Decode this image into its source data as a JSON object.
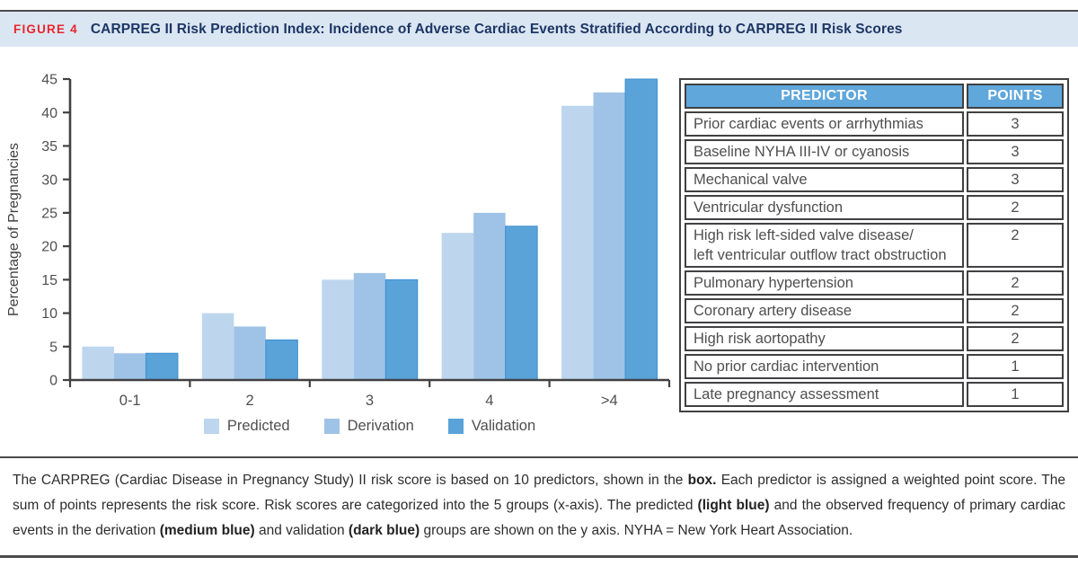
{
  "header": {
    "figure_label": "FIGURE 4",
    "title": "CARPREG II Risk Prediction Index: Incidence of Adverse Cardiac Events Stratified According to CARPREG II Risk Scores"
  },
  "colors": {
    "light_blue": "#bdd6ee",
    "medium_blue": "#9ec3e6",
    "dark_blue": "#59a3d9",
    "dark_blue_stroke": "#3e8fd0",
    "header_band_bg": "#dbe6f3",
    "figure_label_red": "#e8262d",
    "title_navy": "#1c3664",
    "table_header_bg": "#60a7db",
    "rule_color": "#4a4a4c",
    "axis_color": "#414042",
    "text_gray": "#4f4f51"
  },
  "chart_data": {
    "type": "bar",
    "title": "",
    "categories": [
      "0-1",
      "2",
      "3",
      "4",
      ">4"
    ],
    "series": [
      {
        "name": "Predicted",
        "color_key": "light_blue",
        "values": [
          5,
          10,
          15,
          22,
          41
        ]
      },
      {
        "name": "Derivation",
        "color_key": "medium_blue",
        "values": [
          4,
          8,
          16,
          25,
          43
        ]
      },
      {
        "name": "Validation",
        "color_key": "dark_blue",
        "values": [
          4,
          6,
          15,
          23,
          45
        ]
      }
    ],
    "xlabel": "",
    "ylabel": "Percentage of Pregnancies",
    "ylim": [
      0,
      45
    ],
    "ytick_step": 5,
    "grid": false,
    "legend_position": "bottom"
  },
  "table": {
    "headers": [
      "PREDICTOR",
      "POINTS"
    ],
    "rows": [
      {
        "predictor": "Prior cardiac events or arrhythmias",
        "points": "3"
      },
      {
        "predictor": "Baseline NYHA III-IV or cyanosis",
        "points": "3"
      },
      {
        "predictor": "Mechanical valve",
        "points": "3"
      },
      {
        "predictor": "Ventricular dysfunction",
        "points": "2"
      },
      {
        "predictor": "High risk left-sided valve disease/\nleft ventricular outflow tract obstruction",
        "points": "2"
      },
      {
        "predictor": "Pulmonary hypertension",
        "points": "2"
      },
      {
        "predictor": "Coronary artery disease",
        "points": "2"
      },
      {
        "predictor": "High risk aortopathy",
        "points": "2"
      },
      {
        "predictor": "No prior cardiac intervention",
        "points": "1"
      },
      {
        "predictor": "Late pregnancy assessment",
        "points": "1"
      }
    ]
  },
  "caption": {
    "segments": [
      {
        "text": "The CARPREG (Cardiac Disease in Pregnancy Study) II risk score is based on 10 predictors, shown in the ",
        "bold": false
      },
      {
        "text": "box.",
        "bold": true
      },
      {
        "text": " Each predictor is assigned a weighted point score. The sum of points represents the risk score. Risk scores are categorized into the 5 groups (x-axis). The predicted ",
        "bold": false
      },
      {
        "text": "(light blue)",
        "bold": true
      },
      {
        "text": " and the observed frequency of primary cardiac events in the derivation ",
        "bold": false
      },
      {
        "text": "(medium blue)",
        "bold": true
      },
      {
        "text": " and validation ",
        "bold": false
      },
      {
        "text": "(dark blue)",
        "bold": true
      },
      {
        "text": " groups are shown on the y axis. NYHA = New York Heart Association.",
        "bold": false
      }
    ]
  }
}
